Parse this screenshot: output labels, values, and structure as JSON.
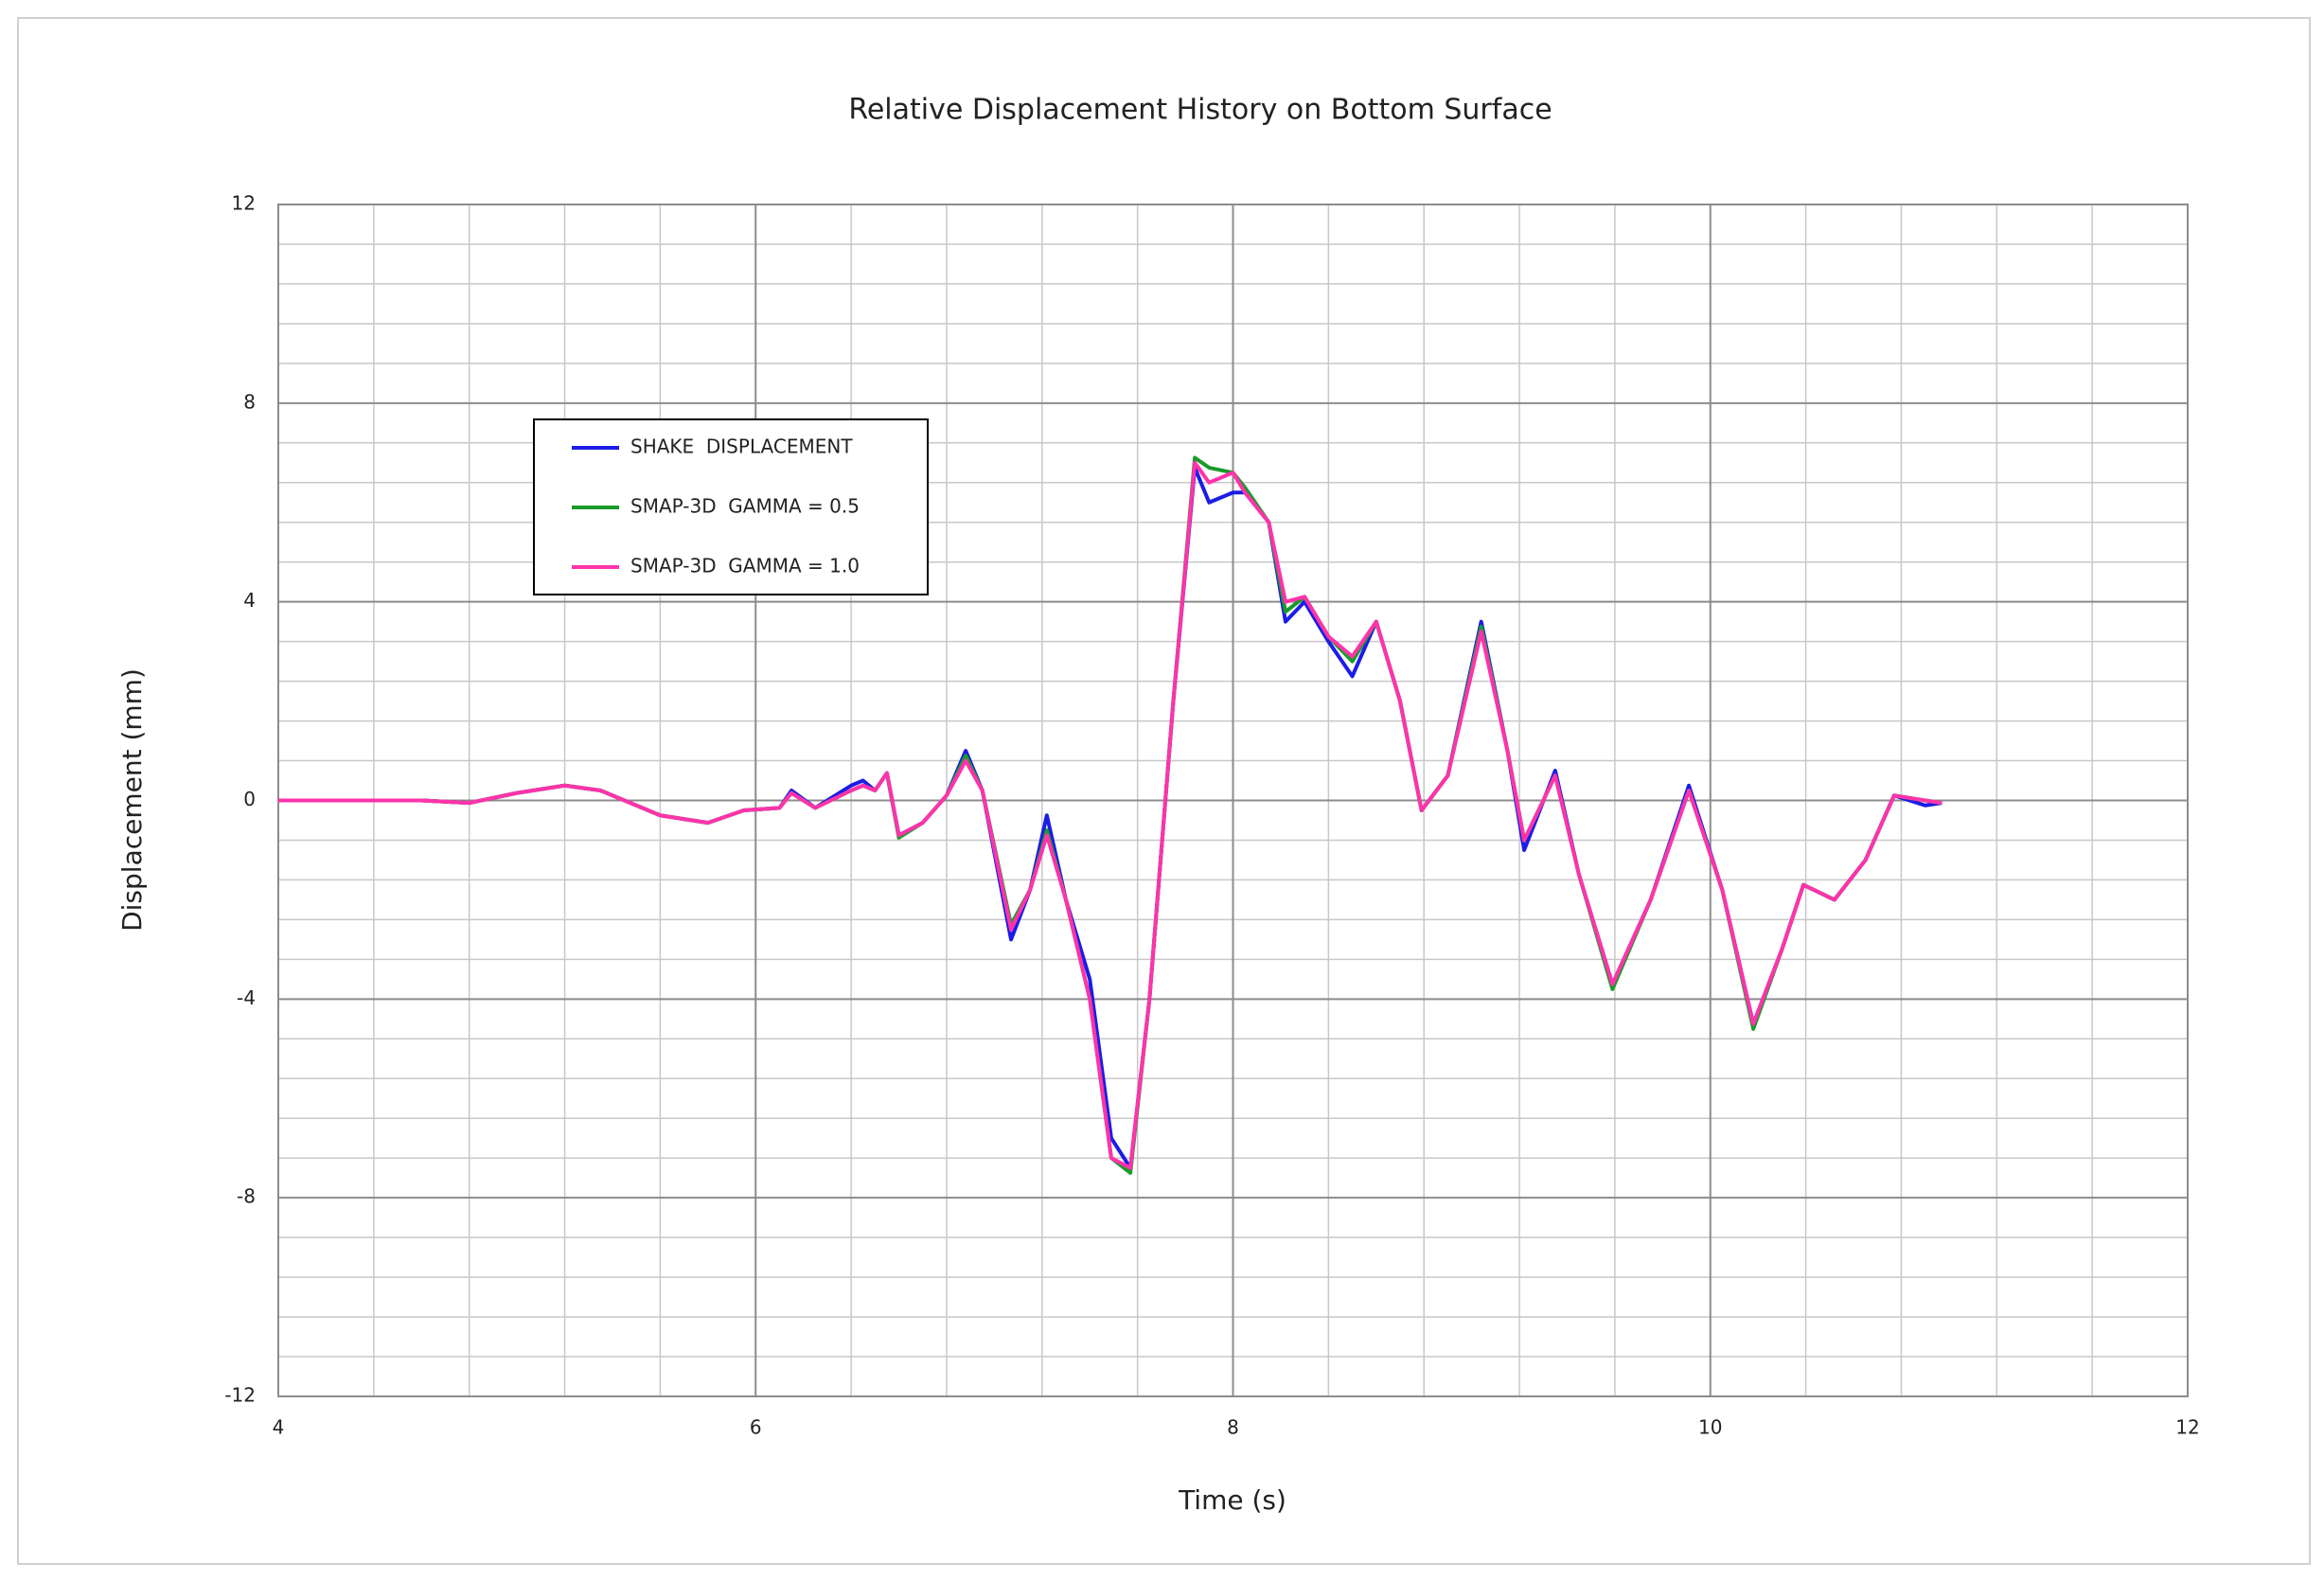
{
  "chart_data": {
    "type": "line",
    "title": "Relative Displacement History   on Bottom Surface",
    "x_label": "Time (s)",
    "y_label": "Displacement (mm)",
    "xlim": [
      4,
      12
    ],
    "xticks": [
      4,
      6,
      8,
      10,
      12
    ],
    "ylim": [
      -12,
      12
    ],
    "yticks": [
      -12,
      -8,
      -4,
      0,
      4,
      8,
      12
    ],
    "grid": true,
    "minor_grid": {
      "x": 0.4,
      "y": 0.8
    },
    "legend": "upper left",
    "x": [
      4.0,
      4.3,
      4.6,
      4.8,
      5.0,
      5.2,
      5.35,
      5.6,
      5.8,
      5.95,
      6.1,
      6.15,
      6.25,
      6.4,
      6.45,
      6.5,
      6.55,
      6.6,
      6.7,
      6.8,
      6.88,
      6.95,
      7.07,
      7.15,
      7.22,
      7.3,
      7.4,
      7.49,
      7.57,
      7.65,
      7.75,
      7.84,
      7.9,
      8.0,
      8.05,
      8.15,
      8.22,
      8.3,
      8.4,
      8.5,
      8.6,
      8.7,
      8.79,
      8.9,
      9.04,
      9.15,
      9.22,
      9.35,
      9.45,
      9.59,
      9.75,
      9.91,
      10.05,
      10.18,
      10.3,
      10.39,
      10.52,
      10.65,
      10.77,
      10.9,
      10.97
    ],
    "series": [
      {
        "name": "SHAKE  DISPLACEMENT",
        "color": "#1c1ce6",
        "values": [
          0,
          0,
          0,
          -0.05,
          0.15,
          0.3,
          0.2,
          -0.3,
          -0.45,
          -0.2,
          -0.15,
          0.2,
          -0.15,
          0.3,
          0.4,
          0.2,
          0.55,
          -0.7,
          -0.45,
          0.1,
          1.0,
          0.2,
          -2.8,
          -1.8,
          -0.3,
          -2.0,
          -3.6,
          -6.8,
          -7.4,
          -4.0,
          2.0,
          6.7,
          6.0,
          6.2,
          6.2,
          5.6,
          3.6,
          4.0,
          3.2,
          2.5,
          3.6,
          2.0,
          -0.2,
          0.5,
          3.6,
          1.0,
          -1.0,
          0.6,
          -1.5,
          -3.7,
          -2.0,
          0.3,
          -1.8,
          -4.5,
          -3.0,
          -1.7,
          -2.0,
          -1.2,
          0.1,
          -0.1,
          -0.05
        ]
      },
      {
        "name": "SMAP-3D  GAMMA = 0.5",
        "color": "#1a9a2a",
        "values": [
          0,
          0,
          0,
          -0.05,
          0.15,
          0.3,
          0.2,
          -0.3,
          -0.45,
          -0.2,
          -0.15,
          0.15,
          -0.15,
          0.2,
          0.3,
          0.2,
          0.55,
          -0.75,
          -0.45,
          0.1,
          0.9,
          0.2,
          -2.5,
          -1.8,
          -0.6,
          -2.0,
          -4.0,
          -7.2,
          -7.5,
          -4.0,
          2.0,
          6.9,
          6.7,
          6.6,
          6.3,
          5.6,
          3.8,
          4.1,
          3.3,
          2.8,
          3.6,
          2.0,
          -0.2,
          0.5,
          3.5,
          1.0,
          -0.8,
          0.5,
          -1.5,
          -3.8,
          -2.0,
          0.2,
          -1.8,
          -4.6,
          -3.0,
          -1.7,
          -2.0,
          -1.2,
          0.1,
          0.0,
          -0.05
        ]
      },
      {
        "name": "SMAP-3D  GAMMA = 1.0",
        "color": "#ff33aa",
        "values": [
          0,
          0,
          0,
          -0.05,
          0.15,
          0.3,
          0.2,
          -0.3,
          -0.45,
          -0.2,
          -0.15,
          0.15,
          -0.15,
          0.2,
          0.3,
          0.2,
          0.55,
          -0.7,
          -0.45,
          0.1,
          0.8,
          0.2,
          -2.6,
          -1.8,
          -0.7,
          -2.0,
          -4.0,
          -7.2,
          -7.4,
          -4.0,
          2.0,
          6.8,
          6.4,
          6.6,
          6.2,
          5.6,
          4.0,
          4.1,
          3.3,
          2.9,
          3.6,
          2.0,
          -0.2,
          0.5,
          3.4,
          1.0,
          -0.8,
          0.5,
          -1.5,
          -3.7,
          -2.0,
          0.2,
          -1.8,
          -4.5,
          -3.0,
          -1.7,
          -2.0,
          -1.2,
          0.1,
          0.0,
          -0.05
        ]
      }
    ]
  }
}
